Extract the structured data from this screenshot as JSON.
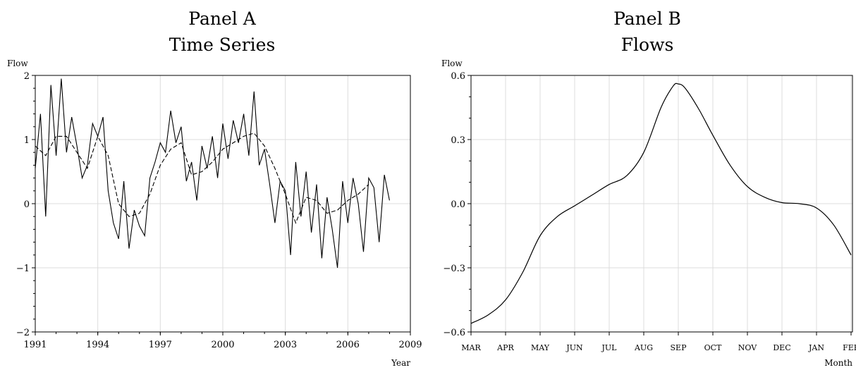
{
  "chart_data": [
    {
      "type": "line",
      "title": "Panel A",
      "subtitle": "Time Series",
      "xlabel": "Year",
      "ylabel": "Flow",
      "xlim": [
        1991,
        2009
      ],
      "ylim": [
        -2,
        2
      ],
      "x_ticks": [
        1991,
        1994,
        1997,
        2000,
        2003,
        2006,
        2009
      ],
      "y_ticks": [
        -2,
        -1,
        0,
        1,
        2
      ],
      "y_tick_labels": [
        "−2",
        "−1",
        "0",
        "1",
        "2"
      ],
      "grid": true,
      "series": [
        {
          "style": "solid",
          "color": "#000000",
          "x": [
            1991.0,
            1991.25,
            1991.5,
            1991.75,
            1992.0,
            1992.25,
            1992.5,
            1992.75,
            1993.0,
            1993.25,
            1993.5,
            1993.75,
            1994.0,
            1994.25,
            1994.5,
            1994.75,
            1995.0,
            1995.25,
            1995.5,
            1995.75,
            1996.0,
            1996.25,
            1996.5,
            1996.75,
            1997.0,
            1997.25,
            1997.5,
            1997.75,
            1998.0,
            1998.25,
            1998.5,
            1998.75,
            1999.0,
            1999.25,
            1999.5,
            1999.75,
            2000.0,
            2000.25,
            2000.5,
            2000.75,
            2001.0,
            2001.25,
            2001.5,
            2001.75,
            2002.0,
            2002.25,
            2002.5,
            2002.75,
            2003.0,
            2003.25,
            2003.5,
            2003.75,
            2004.0,
            2004.25,
            2004.5,
            2004.75,
            2005.0,
            2005.25,
            2005.5,
            2005.75,
            2006.0,
            2006.25,
            2006.5,
            2006.75,
            2007.0,
            2007.25,
            2007.5,
            2007.75,
            2008.0
          ],
          "y": [
            0.55,
            1.4,
            -0.2,
            1.85,
            0.75,
            1.95,
            0.8,
            1.35,
            0.9,
            0.4,
            0.6,
            1.25,
            1.05,
            1.35,
            0.2,
            -0.3,
            -0.55,
            0.35,
            -0.7,
            -0.1,
            -0.35,
            -0.5,
            0.4,
            0.65,
            0.95,
            0.8,
            1.45,
            0.95,
            1.2,
            0.35,
            0.65,
            0.05,
            0.9,
            0.55,
            1.05,
            0.4,
            1.25,
            0.7,
            1.3,
            0.95,
            1.4,
            0.75,
            1.75,
            0.6,
            0.85,
            0.3,
            -0.3,
            0.35,
            0.2,
            -0.8,
            0.65,
            -0.2,
            0.5,
            -0.45,
            0.3,
            -0.85,
            0.1,
            -0.4,
            -1.0,
            0.35,
            -0.3,
            0.4,
            0.0,
            -0.75,
            0.4,
            0.25,
            -0.6,
            0.45,
            0.05
          ]
        },
        {
          "style": "dashed",
          "color": "#000000",
          "x": [
            1991.0,
            1991.5,
            1992.0,
            1992.5,
            1993.0,
            1993.5,
            1994.0,
            1994.5,
            1995.0,
            1995.5,
            1996.0,
            1996.5,
            1997.0,
            1997.5,
            1998.0,
            1998.5,
            1999.0,
            1999.5,
            2000.0,
            2000.5,
            2001.0,
            2001.5,
            2002.0,
            2002.5,
            2003.0,
            2003.5,
            2004.0,
            2004.5,
            2005.0,
            2005.5,
            2006.0,
            2006.5,
            2007.0
          ],
          "y": [
            0.9,
            0.75,
            1.05,
            1.05,
            0.8,
            0.55,
            1.05,
            0.75,
            0.0,
            -0.2,
            -0.15,
            0.15,
            0.6,
            0.85,
            0.95,
            0.45,
            0.5,
            0.65,
            0.85,
            0.95,
            1.05,
            1.1,
            0.9,
            0.55,
            0.15,
            -0.3,
            0.1,
            0.05,
            -0.15,
            -0.1,
            0.05,
            0.15,
            0.3
          ]
        }
      ]
    },
    {
      "type": "line",
      "title": "Panel B",
      "subtitle": "Flows",
      "xlabel": "Month",
      "ylabel": "Flow",
      "categories": [
        "MAR",
        "APR",
        "MAY",
        "JUN",
        "JUL",
        "AUG",
        "SEP",
        "OCT",
        "NOV",
        "DEC",
        "JAN",
        "FEB"
      ],
      "ylim": [
        -0.6,
        0.6
      ],
      "y_ticks": [
        -0.6,
        -0.3,
        0.0,
        0.3,
        0.6
      ],
      "y_tick_labels": [
        "−0.6",
        "−0.3",
        "0.0",
        "0.3",
        "0.6"
      ],
      "grid": true,
      "series": [
        {
          "style": "solid",
          "color": "#000000",
          "x": [
            0,
            0.5,
            1,
            1.5,
            2,
            2.5,
            3,
            3.5,
            4,
            4.5,
            5,
            5.5,
            5.85,
            6,
            6.2,
            6.6,
            7,
            7.5,
            8,
            8.5,
            9,
            9.5,
            10,
            10.5,
            11
          ],
          "y": [
            -0.56,
            -0.52,
            -0.45,
            -0.32,
            -0.15,
            -0.06,
            -0.01,
            0.04,
            0.09,
            0.13,
            0.24,
            0.45,
            0.55,
            0.56,
            0.54,
            0.44,
            0.32,
            0.18,
            0.08,
            0.03,
            0.005,
            0.0,
            -0.02,
            -0.1,
            -0.24
          ]
        }
      ]
    }
  ]
}
